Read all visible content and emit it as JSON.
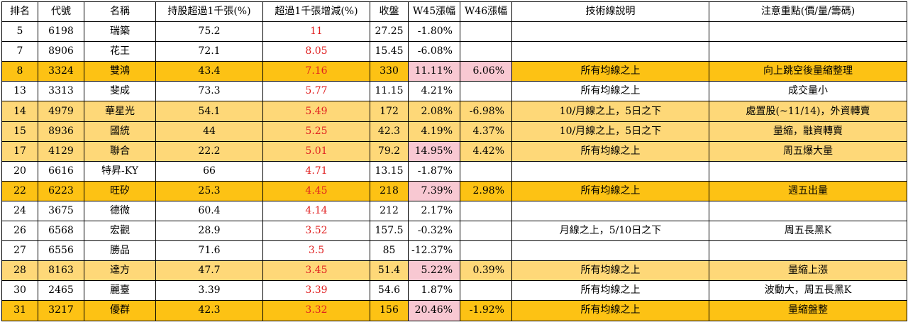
{
  "headers": [
    "排名",
    "代號",
    "名稱",
    "持股超過1千張(%)",
    "超過1千張增減(%)",
    "收盤",
    "W45漲幅",
    "W46漲幅",
    "技術線說明",
    "注意重點(價/量/籌碼)"
  ],
  "rows": [
    {
      "rank": "5",
      "code": "6198",
      "name": "瑞築",
      "hold": "75.2",
      "chg": "11",
      "close": "27.25",
      "w45": "-1.80%",
      "w46": "",
      "tech": "",
      "note": "",
      "hl": "",
      "pink45": false,
      "pink46": false
    },
    {
      "rank": "7",
      "code": "8906",
      "name": "花王",
      "hold": "72.1",
      "chg": "8.05",
      "close": "15.45",
      "w45": "-6.08%",
      "w46": "",
      "tech": "",
      "note": "",
      "hl": "",
      "pink45": false,
      "pink46": false
    },
    {
      "rank": "8",
      "code": "3324",
      "name": "雙鴻",
      "hold": "43.4",
      "chg": "7.16",
      "close": "330",
      "w45": "11.11%",
      "w46": "6.06%",
      "tech": "所有均線之上",
      "note": "向上跳空後量縮整理",
      "hl": "hl1",
      "pink45": true,
      "pink46": true
    },
    {
      "rank": "13",
      "code": "3313",
      "name": "斐成",
      "hold": "73.3",
      "chg": "5.77",
      "close": "11.15",
      "w45": "4.21%",
      "w46": "",
      "tech": "所有均線之上",
      "note": "成交量小",
      "hl": "",
      "pink45": false,
      "pink46": false
    },
    {
      "rank": "14",
      "code": "4979",
      "name": "華星光",
      "hold": "54.1",
      "chg": "5.49",
      "close": "172",
      "w45": "2.08%",
      "w46": "-6.98%",
      "tech": "10/月線之上，5日之下",
      "note": "處置股(~11/14)，外資轉賣",
      "hl": "hl2",
      "pink45": false,
      "pink46": false
    },
    {
      "rank": "15",
      "code": "8936",
      "name": "國統",
      "hold": "44",
      "chg": "5.25",
      "close": "42.3",
      "w45": "4.19%",
      "w46": "4.37%",
      "tech": "10/月線之上，5日之下",
      "note": "量縮，融資轉賣",
      "hl": "hl2",
      "pink45": false,
      "pink46": false
    },
    {
      "rank": "17",
      "code": "4129",
      "name": "聯合",
      "hold": "22.2",
      "chg": "5.01",
      "close": "79.2",
      "w45": "14.95%",
      "w46": "4.42%",
      "tech": "所有均線之上",
      "note": "周五爆大量",
      "hl": "hl2",
      "pink45": true,
      "pink46": false
    },
    {
      "rank": "20",
      "code": "6616",
      "name": "特昇-KY",
      "hold": "66",
      "chg": "4.71",
      "close": "13.15",
      "w45": "-1.87%",
      "w46": "",
      "tech": "",
      "note": "",
      "hl": "",
      "pink45": false,
      "pink46": false
    },
    {
      "rank": "22",
      "code": "6223",
      "name": "旺矽",
      "hold": "25.3",
      "chg": "4.45",
      "close": "218",
      "w45": "7.39%",
      "w46": "2.98%",
      "tech": "所有均線之上",
      "note": "週五出量",
      "hl": "hl1",
      "pink45": true,
      "pink46": false
    },
    {
      "rank": "24",
      "code": "3675",
      "name": "德微",
      "hold": "60.4",
      "chg": "4.14",
      "close": "212",
      "w45": "2.17%",
      "w46": "",
      "tech": "",
      "note": "",
      "hl": "",
      "pink45": false,
      "pink46": false
    },
    {
      "rank": "26",
      "code": "6568",
      "name": "宏觀",
      "hold": "28.9",
      "chg": "3.52",
      "close": "157.5",
      "w45": "-0.32%",
      "w46": "",
      "tech": "月線之上，5/10日之下",
      "note": "周五長黑K",
      "hl": "",
      "pink45": false,
      "pink46": false
    },
    {
      "rank": "27",
      "code": "6556",
      "name": "勝品",
      "hold": "71.6",
      "chg": "3.5",
      "close": "85",
      "w45": "-12.37%",
      "w46": "",
      "tech": "",
      "note": "",
      "hl": "",
      "pink45": false,
      "pink46": false
    },
    {
      "rank": "28",
      "code": "8163",
      "name": "達方",
      "hold": "47.7",
      "chg": "3.45",
      "close": "51.4",
      "w45": "5.22%",
      "w46": "0.39%",
      "tech": "所有均線之上",
      "note": "量縮上漲",
      "hl": "hl2",
      "pink45": true,
      "pink46": false
    },
    {
      "rank": "30",
      "code": "2465",
      "name": "麗臺",
      "hold": "3.39",
      "chg": "3.39",
      "close": "54.6",
      "w45": "1.87%",
      "w46": "",
      "tech": "所有均線之上",
      "note": "波動大，周五長黑K",
      "hl": "",
      "pink45": false,
      "pink46": false
    },
    {
      "rank": "31",
      "code": "3217",
      "name": "優群",
      "hold": "42.3",
      "chg": "3.32",
      "close": "156",
      "w45": "20.46%",
      "w46": "-1.92%",
      "tech": "所有均線之上",
      "note": "量縮盤整",
      "hl": "hl1",
      "pink45": true,
      "pink46": false
    }
  ]
}
